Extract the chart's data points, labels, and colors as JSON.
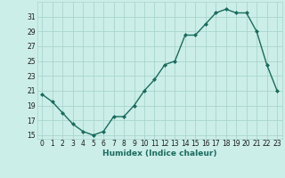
{
  "x": [
    0,
    1,
    2,
    3,
    4,
    5,
    6,
    7,
    8,
    9,
    10,
    11,
    12,
    13,
    14,
    15,
    16,
    17,
    18,
    19,
    20,
    21,
    22,
    23
  ],
  "y": [
    20.5,
    19.5,
    18.0,
    16.5,
    15.5,
    15.0,
    15.5,
    17.5,
    17.5,
    19.0,
    21.0,
    22.5,
    24.5,
    25.0,
    28.5,
    28.5,
    30.0,
    31.5,
    32.0,
    31.5,
    31.5,
    29.0,
    24.5,
    21.0
  ],
  "line_color": "#1a6b5e",
  "marker": "D",
  "marker_size": 2,
  "bg_color": "#cceee8",
  "grid_color": "#aad4ce",
  "xlabel": "Humidex (Indice chaleur)",
  "ylim": [
    14.5,
    33
  ],
  "xlim": [
    -0.5,
    23.5
  ],
  "yticks": [
    15,
    17,
    19,
    21,
    23,
    25,
    27,
    29,
    31
  ],
  "xticks": [
    0,
    1,
    2,
    3,
    4,
    5,
    6,
    7,
    8,
    9,
    10,
    11,
    12,
    13,
    14,
    15,
    16,
    17,
    18,
    19,
    20,
    21,
    22,
    23
  ],
  "tick_label_fontsize": 5.5,
  "xlabel_fontsize": 6.5,
  "line_width": 1.0
}
